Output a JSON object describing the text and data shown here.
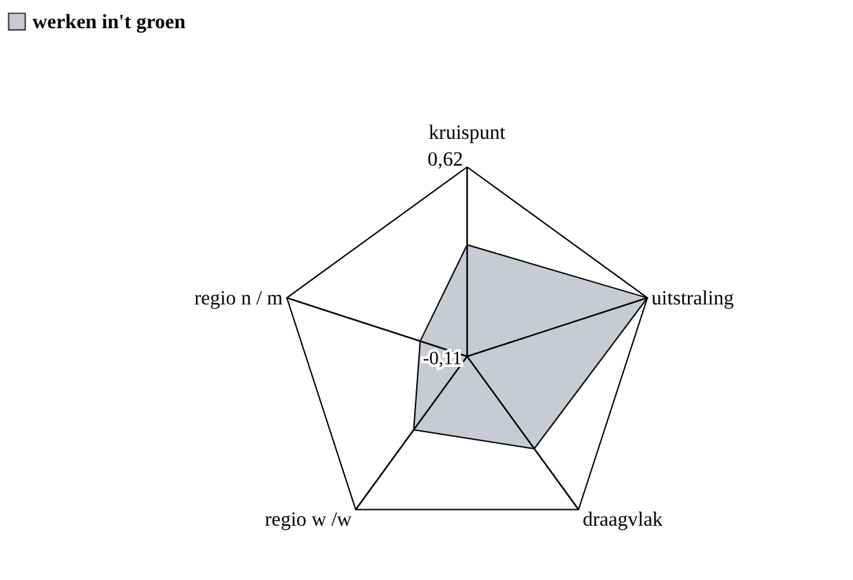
{
  "chart_data": {
    "type": "radar",
    "categories": [
      "kruispunt",
      "uitstraling",
      "draagvlak",
      "regio w /w",
      "regio n / m"
    ],
    "series": [
      {
        "name": "werken in't groen",
        "color": "#c9cbd3",
        "values": [
          0.32,
          0.62,
          0.33,
          0.24,
          0.08
        ]
      }
    ],
    "ylim": [
      -0.11,
      0.62
    ],
    "yticks": [
      {
        "value": -0.11,
        "label": "-0,11"
      },
      {
        "value": 0.62,
        "label": "0,62"
      }
    ],
    "grid": true,
    "legend": "top left"
  }
}
